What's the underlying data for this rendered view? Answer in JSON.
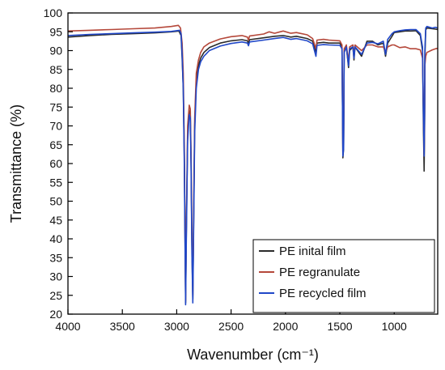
{
  "chart_data": {
    "type": "line",
    "xlabel": "Wavenumber (cm⁻¹)",
    "ylabel": "Transmittance (%)",
    "xlim": [
      4000,
      600
    ],
    "ylim": [
      20,
      100
    ],
    "x_reversed": true,
    "xticks": [
      4000,
      3500,
      3000,
      2500,
      2000,
      1500,
      1000
    ],
    "yticks": [
      20,
      25,
      30,
      35,
      40,
      45,
      50,
      55,
      60,
      65,
      70,
      75,
      80,
      85,
      90,
      95,
      100
    ],
    "grid": false,
    "legend_position": "bottom-right",
    "series": [
      {
        "name": "PE inital film",
        "color": "#2b2b2b",
        "points": [
          [
            4000,
            93.6
          ],
          [
            3800,
            94.0
          ],
          [
            3600,
            94.3
          ],
          [
            3400,
            94.5
          ],
          [
            3200,
            94.7
          ],
          [
            3050,
            95.0
          ],
          [
            2980,
            95.2
          ],
          [
            2960,
            94.0
          ],
          [
            2950,
            88
          ],
          [
            2940,
            80
          ],
          [
            2930,
            62
          ],
          [
            2922,
            35
          ],
          [
            2918,
            23
          ],
          [
            2912,
            40
          ],
          [
            2900,
            68
          ],
          [
            2885,
            74
          ],
          [
            2875,
            73
          ],
          [
            2868,
            60
          ],
          [
            2860,
            38
          ],
          [
            2852,
            24
          ],
          [
            2846,
            40
          ],
          [
            2835,
            70
          ],
          [
            2820,
            82
          ],
          [
            2800,
            86
          ],
          [
            2780,
            88
          ],
          [
            2750,
            89.5
          ],
          [
            2700,
            90.8
          ],
          [
            2600,
            92.0
          ],
          [
            2500,
            92.6
          ],
          [
            2400,
            92.9
          ],
          [
            2350,
            92.6
          ],
          [
            2340,
            91.9
          ],
          [
            2330,
            92.9
          ],
          [
            2200,
            93.4
          ],
          [
            2100,
            93.8
          ],
          [
            2020,
            94.0
          ],
          [
            1950,
            93.6
          ],
          [
            1900,
            93.8
          ],
          [
            1800,
            93.2
          ],
          [
            1750,
            92.5
          ],
          [
            1720,
            89.5
          ],
          [
            1710,
            92.0
          ],
          [
            1650,
            92.2
          ],
          [
            1600,
            92.0
          ],
          [
            1500,
            92.0
          ],
          [
            1480,
            91.0
          ],
          [
            1472,
            61.5
          ],
          [
            1465,
            64.0
          ],
          [
            1460,
            90
          ],
          [
            1440,
            91
          ],
          [
            1420,
            85.5
          ],
          [
            1410,
            90
          ],
          [
            1380,
            91
          ],
          [
            1370,
            87.5
          ],
          [
            1360,
            91
          ],
          [
            1300,
            88.5
          ],
          [
            1250,
            92.5
          ],
          [
            1200,
            92.5
          ],
          [
            1150,
            91.5
          ],
          [
            1100,
            92.0
          ],
          [
            1080,
            88.5
          ],
          [
            1060,
            92
          ],
          [
            1020,
            93.8
          ],
          [
            1000,
            94.8
          ],
          [
            950,
            95.0
          ],
          [
            900,
            95.2
          ],
          [
            850,
            95.2
          ],
          [
            800,
            95.3
          ],
          [
            760,
            94.0
          ],
          [
            740,
            90
          ],
          [
            732,
            70
          ],
          [
            725,
            58
          ],
          [
            720,
            72
          ],
          [
            718,
            88
          ],
          [
            710,
            95.5
          ],
          [
            700,
            96.0
          ],
          [
            650,
            95.8
          ],
          [
            620,
            95.7
          ],
          [
            600,
            95.6
          ]
        ]
      },
      {
        "name": "PE regranulate",
        "color": "#b5483a",
        "points": [
          [
            4000,
            95.2
          ],
          [
            3800,
            95.4
          ],
          [
            3600,
            95.6
          ],
          [
            3400,
            95.8
          ],
          [
            3200,
            96.0
          ],
          [
            3050,
            96.4
          ],
          [
            2985,
            96.7
          ],
          [
            2965,
            96.0
          ],
          [
            2950,
            92
          ],
          [
            2940,
            84
          ],
          [
            2930,
            65
          ],
          [
            2922,
            36
          ],
          [
            2918,
            23.5
          ],
          [
            2912,
            42
          ],
          [
            2900,
            70
          ],
          [
            2885,
            75.5
          ],
          [
            2875,
            74.5
          ],
          [
            2868,
            62
          ],
          [
            2860,
            40
          ],
          [
            2852,
            25
          ],
          [
            2846,
            42
          ],
          [
            2835,
            72
          ],
          [
            2820,
            84
          ],
          [
            2800,
            87.5
          ],
          [
            2780,
            89.5
          ],
          [
            2750,
            91.0
          ],
          [
            2700,
            92.0
          ],
          [
            2600,
            93.1
          ],
          [
            2500,
            93.7
          ],
          [
            2400,
            94.0
          ],
          [
            2350,
            93.6
          ],
          [
            2340,
            92.8
          ],
          [
            2330,
            93.9
          ],
          [
            2200,
            94.4
          ],
          [
            2150,
            95.0
          ],
          [
            2100,
            94.6
          ],
          [
            2050,
            95.0
          ],
          [
            2020,
            95.2
          ],
          [
            1950,
            94.6
          ],
          [
            1900,
            94.8
          ],
          [
            1800,
            94.2
          ],
          [
            1750,
            93.2
          ],
          [
            1720,
            90.5
          ],
          [
            1710,
            92.8
          ],
          [
            1650,
            93.0
          ],
          [
            1600,
            92.8
          ],
          [
            1500,
            92.6
          ],
          [
            1480,
            91.5
          ],
          [
            1472,
            63
          ],
          [
            1465,
            65
          ],
          [
            1460,
            90.5
          ],
          [
            1440,
            91.5
          ],
          [
            1420,
            87
          ],
          [
            1410,
            91
          ],
          [
            1380,
            91.5
          ],
          [
            1370,
            89
          ],
          [
            1360,
            91.5
          ],
          [
            1300,
            90
          ],
          [
            1250,
            91.5
          ],
          [
            1200,
            91.5
          ],
          [
            1150,
            91
          ],
          [
            1100,
            91
          ],
          [
            1080,
            89.5
          ],
          [
            1060,
            91
          ],
          [
            1020,
            91.5
          ],
          [
            1000,
            91.5
          ],
          [
            950,
            90.8
          ],
          [
            900,
            91.0
          ],
          [
            850,
            90.5
          ],
          [
            800,
            90.5
          ],
          [
            760,
            90.2
          ],
          [
            740,
            88
          ],
          [
            732,
            75
          ],
          [
            725,
            62
          ],
          [
            720,
            75
          ],
          [
            718,
            86
          ],
          [
            710,
            88.5
          ],
          [
            700,
            89.5
          ],
          [
            650,
            90.2
          ],
          [
            620,
            90.5
          ],
          [
            600,
            90.6
          ]
        ]
      },
      {
        "name": "PE recycled film",
        "color": "#2047c8",
        "points": [
          [
            4000,
            94.0
          ],
          [
            3800,
            94.3
          ],
          [
            3600,
            94.5
          ],
          [
            3400,
            94.7
          ],
          [
            3200,
            94.9
          ],
          [
            3050,
            95.1
          ],
          [
            2975,
            95.4
          ],
          [
            2960,
            94.5
          ],
          [
            2950,
            89
          ],
          [
            2940,
            80
          ],
          [
            2930,
            60
          ],
          [
            2922,
            34
          ],
          [
            2918,
            22.5
          ],
          [
            2912,
            38
          ],
          [
            2900,
            66
          ],
          [
            2885,
            73
          ],
          [
            2875,
            72
          ],
          [
            2868,
            58
          ],
          [
            2860,
            36
          ],
          [
            2852,
            23
          ],
          [
            2846,
            38
          ],
          [
            2835,
            68
          ],
          [
            2820,
            80
          ],
          [
            2800,
            85
          ],
          [
            2780,
            87
          ],
          [
            2750,
            88.5
          ],
          [
            2700,
            90.0
          ],
          [
            2600,
            91.2
          ],
          [
            2500,
            91.9
          ],
          [
            2400,
            92.3
          ],
          [
            2350,
            92.0
          ],
          [
            2340,
            91.3
          ],
          [
            2330,
            92.3
          ],
          [
            2200,
            92.8
          ],
          [
            2100,
            93.2
          ],
          [
            2020,
            93.5
          ],
          [
            1950,
            93.0
          ],
          [
            1900,
            93.2
          ],
          [
            1800,
            92.6
          ],
          [
            1750,
            91.8
          ],
          [
            1720,
            88.5
          ],
          [
            1710,
            91.4
          ],
          [
            1650,
            91.6
          ],
          [
            1600,
            91.5
          ],
          [
            1500,
            91.4
          ],
          [
            1480,
            90.5
          ],
          [
            1472,
            62
          ],
          [
            1465,
            64
          ],
          [
            1460,
            89.5
          ],
          [
            1440,
            91
          ],
          [
            1420,
            86
          ],
          [
            1410,
            90.5
          ],
          [
            1380,
            91
          ],
          [
            1370,
            88
          ],
          [
            1360,
            91
          ],
          [
            1300,
            89
          ],
          [
            1250,
            92
          ],
          [
            1200,
            92.2
          ],
          [
            1150,
            91.8
          ],
          [
            1100,
            92.5
          ],
          [
            1080,
            89
          ],
          [
            1060,
            93
          ],
          [
            1020,
            94.5
          ],
          [
            1000,
            95.0
          ],
          [
            950,
            95.3
          ],
          [
            900,
            95.5
          ],
          [
            850,
            95.6
          ],
          [
            800,
            95.6
          ],
          [
            760,
            94.5
          ],
          [
            740,
            91
          ],
          [
            732,
            73
          ],
          [
            725,
            62
          ],
          [
            720,
            76
          ],
          [
            718,
            90
          ],
          [
            710,
            96.0
          ],
          [
            700,
            96.4
          ],
          [
            650,
            96.0
          ],
          [
            620,
            96.2
          ],
          [
            600,
            96.0
          ]
        ]
      }
    ]
  }
}
